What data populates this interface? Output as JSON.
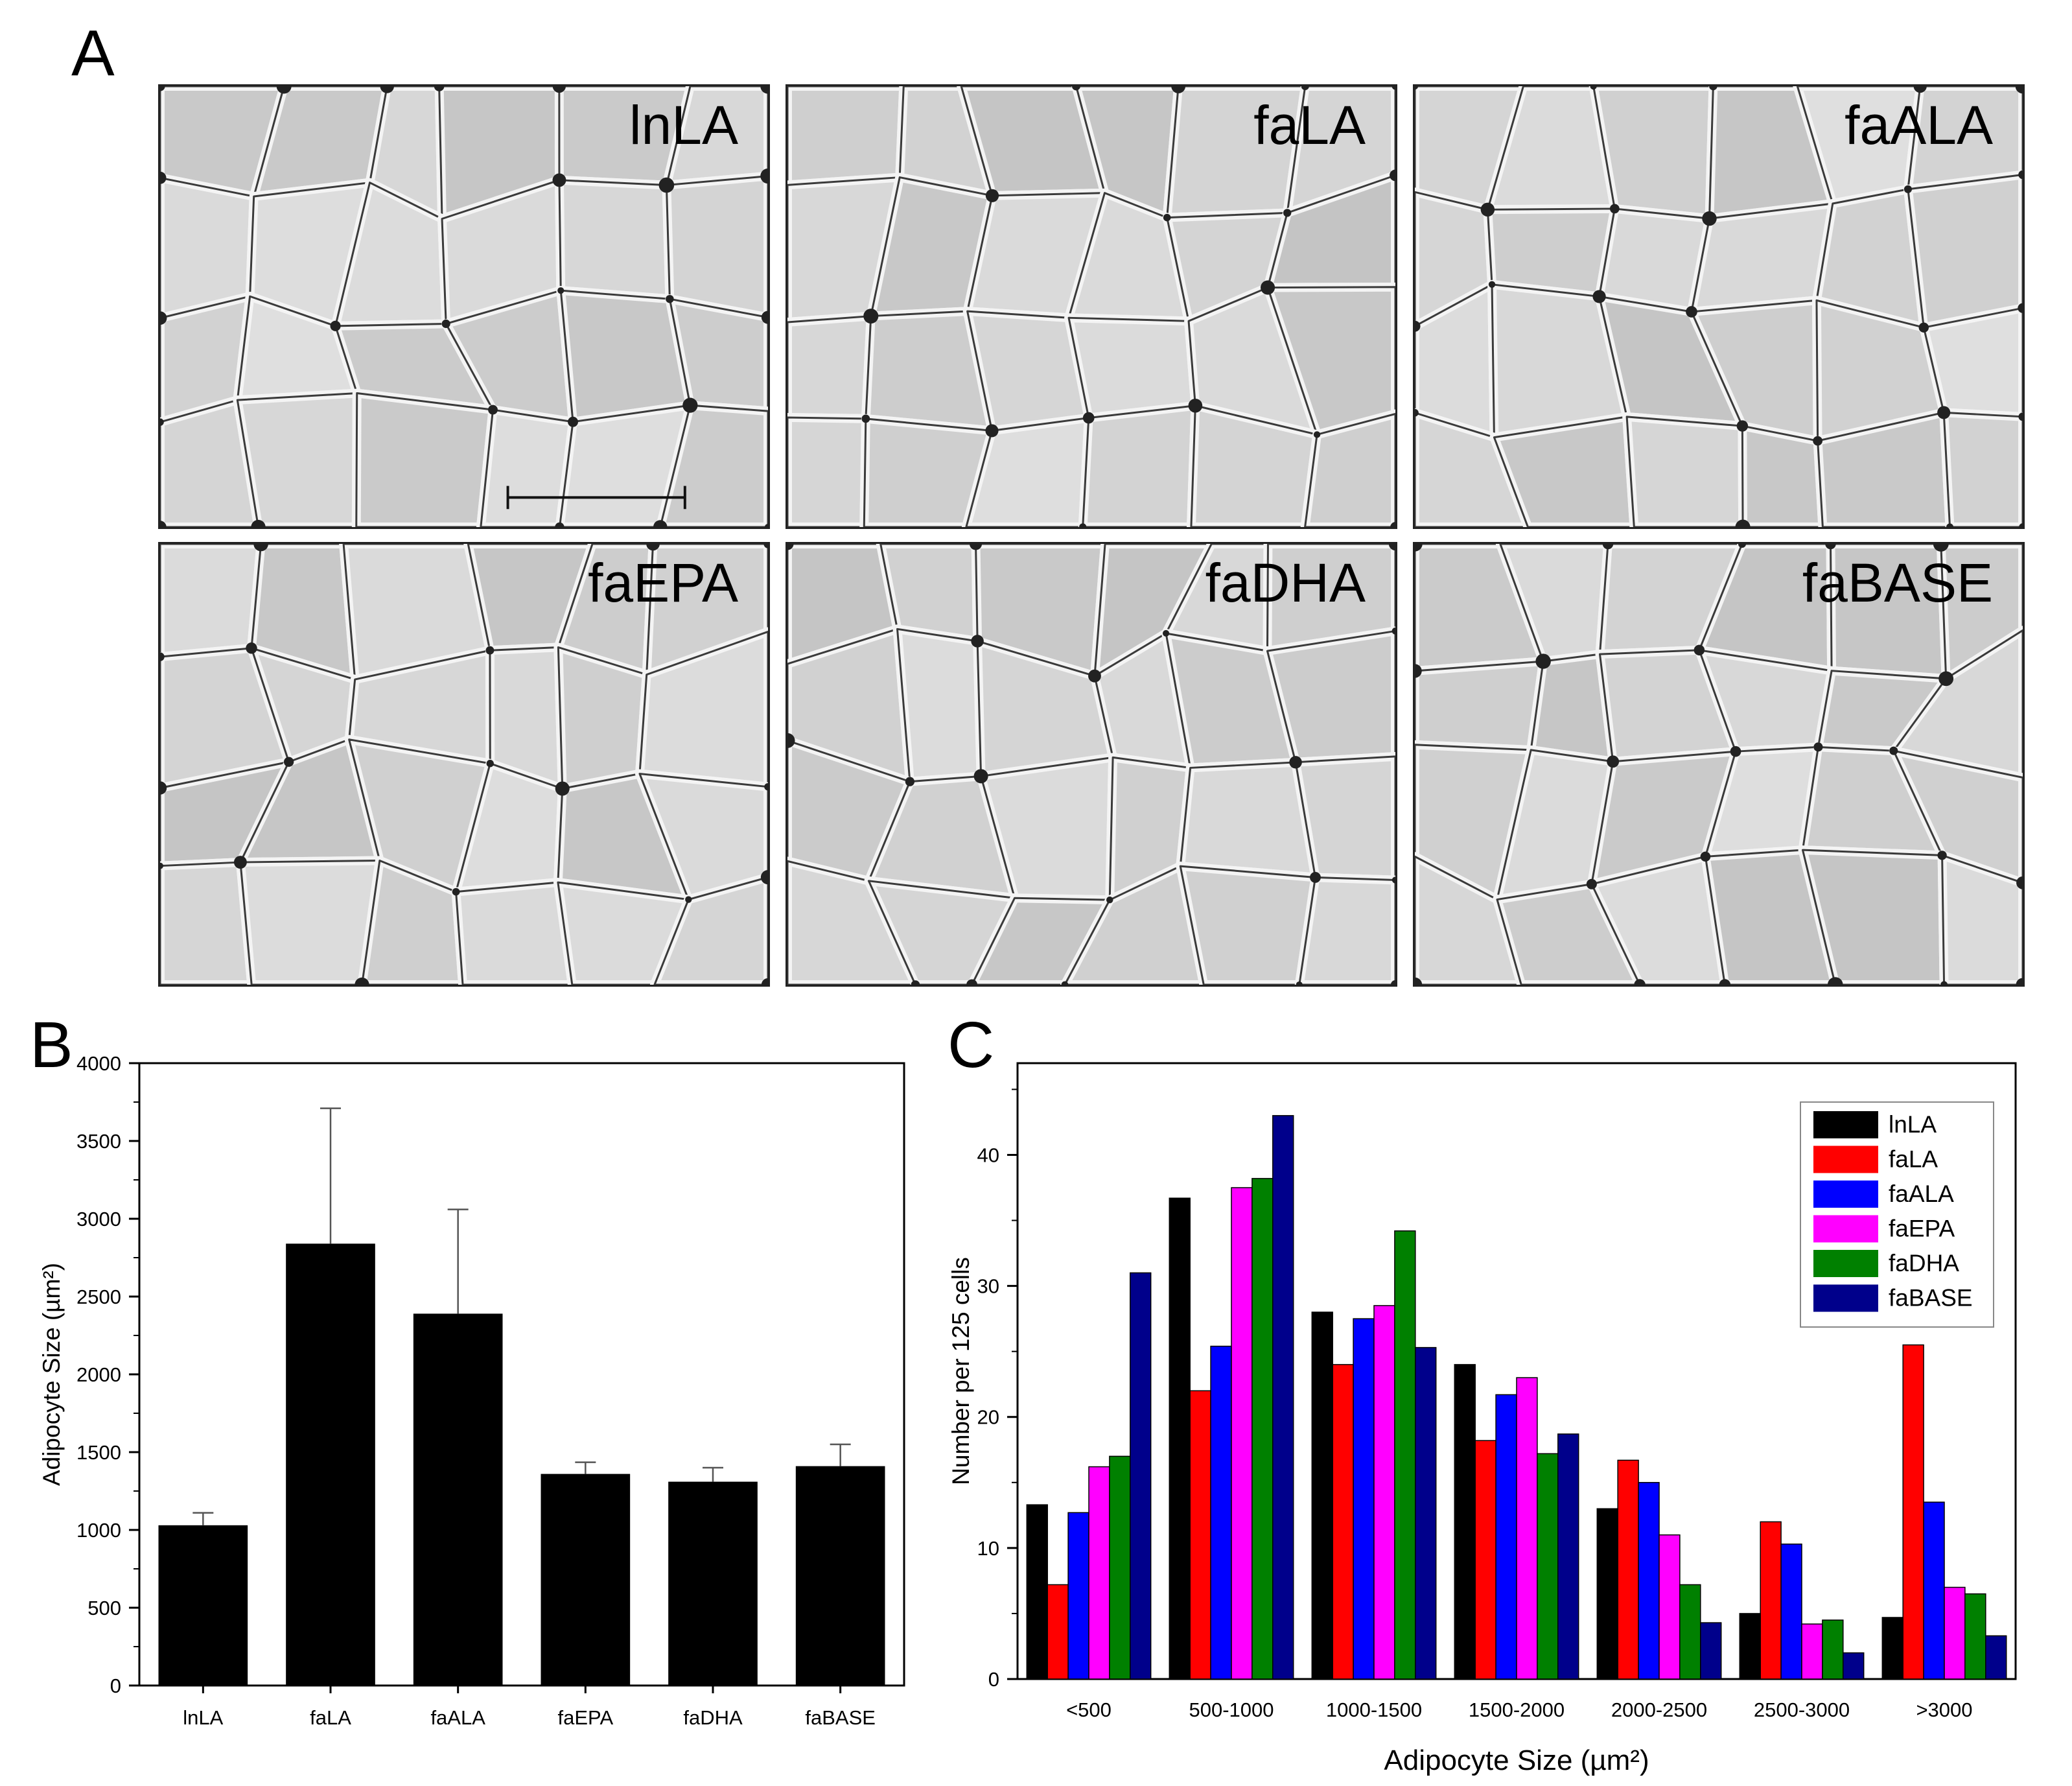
{
  "figure": {
    "panel_a_letter": "A",
    "panel_b_letter": "B",
    "panel_c_letter": "C"
  },
  "micrographs": [
    {
      "label": "lnLA",
      "tone": "#d0d0d0"
    },
    {
      "label": "faLA",
      "tone": "#dcdcdc"
    },
    {
      "label": "faALA",
      "tone": "#c9c9c9"
    },
    {
      "label": "faEPA",
      "tone": "#c8c8c8"
    },
    {
      "label": "faDHA",
      "tone": "#c4c4c4"
    },
    {
      "label": "faBASE",
      "tone": "#dedede"
    }
  ],
  "chart_data": [
    {
      "type": "bar",
      "panel": "B",
      "title": "",
      "xlabel": "",
      "ylabel": "Adipocyte Size (µm²)",
      "categories": [
        "lnLA",
        "faLA",
        "faALA",
        "faEPA",
        "faDHA",
        "faBASE"
      ],
      "values": [
        1030,
        2840,
        2390,
        1360,
        1310,
        1410
      ],
      "errors": [
        80,
        870,
        670,
        75,
        90,
        140
      ],
      "ylim": [
        0,
        4000
      ],
      "yticks": [
        0,
        500,
        1000,
        1500,
        2000,
        2500,
        3000,
        3500,
        4000
      ],
      "bar_color": "#000000",
      "grid": false
    },
    {
      "type": "bar",
      "panel": "C",
      "title": "",
      "xlabel": "Adipocyte Size (µm²)",
      "ylabel": "Number per 125 cells",
      "categories": [
        "<500",
        "500-1000",
        "1000-1500",
        "1500-2000",
        "2000-2500",
        "2500-3000",
        ">3000"
      ],
      "ylim": [
        0,
        47
      ],
      "yticks": [
        0,
        10,
        20,
        30,
        40
      ],
      "legend_position": "top-right",
      "grid": false,
      "series": [
        {
          "name": "lnLA",
          "color": "#000000",
          "values": [
            13.3,
            36.7,
            28.0,
            24.0,
            13.0,
            5.0,
            4.7
          ]
        },
        {
          "name": "faLA",
          "color": "#ff0000",
          "values": [
            7.2,
            22.0,
            24.0,
            18.2,
            16.7,
            12.0,
            25.5
          ]
        },
        {
          "name": "faALA",
          "color": "#0000ff",
          "values": [
            12.7,
            25.4,
            27.5,
            21.7,
            15.0,
            10.3,
            13.5
          ]
        },
        {
          "name": "faEPA",
          "color": "#ff00ff",
          "values": [
            16.2,
            37.5,
            28.5,
            23.0,
            11.0,
            4.2,
            7.0
          ]
        },
        {
          "name": "faDHA",
          "color": "#008000",
          "values": [
            17.0,
            38.2,
            34.2,
            17.2,
            7.2,
            4.5,
            6.5
          ]
        },
        {
          "name": "faBASE",
          "color": "#00008b",
          "values": [
            31.0,
            43.0,
            25.3,
            18.7,
            4.3,
            2.0,
            3.3
          ]
        }
      ]
    }
  ]
}
